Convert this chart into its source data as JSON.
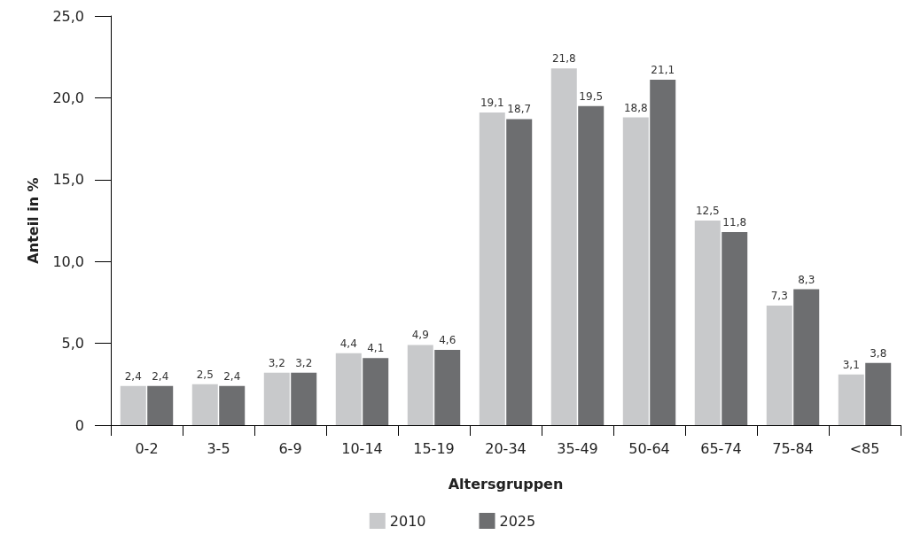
{
  "chart_data": {
    "type": "bar",
    "xlabel": "Altersgruppen",
    "ylabel": "Anteil in %",
    "categories": [
      "0-2",
      "3-5",
      "6-9",
      "10-14",
      "15-19",
      "20-34",
      "35-49",
      "50-64",
      "65-74",
      "75-84",
      "<85"
    ],
    "series": [
      {
        "name": "2010",
        "color": "#c8c9cb",
        "values": [
          2.4,
          2.5,
          3.2,
          4.4,
          4.9,
          19.1,
          21.8,
          18.8,
          12.5,
          7.3,
          3.1
        ],
        "value_labels": [
          "2,4",
          "2,5",
          "3,2",
          "4,4",
          "4,9",
          "19,1",
          "21,8",
          "18,8",
          "12,5",
          "7,3",
          "3,1"
        ]
      },
      {
        "name": "2025",
        "color": "#6d6e70",
        "values": [
          2.4,
          2.4,
          3.2,
          4.1,
          4.6,
          18.7,
          19.5,
          21.1,
          11.8,
          8.3,
          3.8
        ],
        "value_labels": [
          "2,4",
          "2,4",
          "3,2",
          "4,1",
          "4,6",
          "18,7",
          "19,5",
          "21,1",
          "11,8",
          "8,3",
          "3,8"
        ]
      }
    ],
    "ylim": [
      0,
      25
    ],
    "yticks": [
      {
        "value": 0,
        "label": "0"
      },
      {
        "value": 5,
        "label": "5,0"
      },
      {
        "value": 10,
        "label": "10,0"
      },
      {
        "value": 15,
        "label": "15,0"
      },
      {
        "value": 20,
        "label": "20,0"
      },
      {
        "value": 25,
        "label": "25,0"
      }
    ],
    "grid": false,
    "legend": "bottom"
  }
}
